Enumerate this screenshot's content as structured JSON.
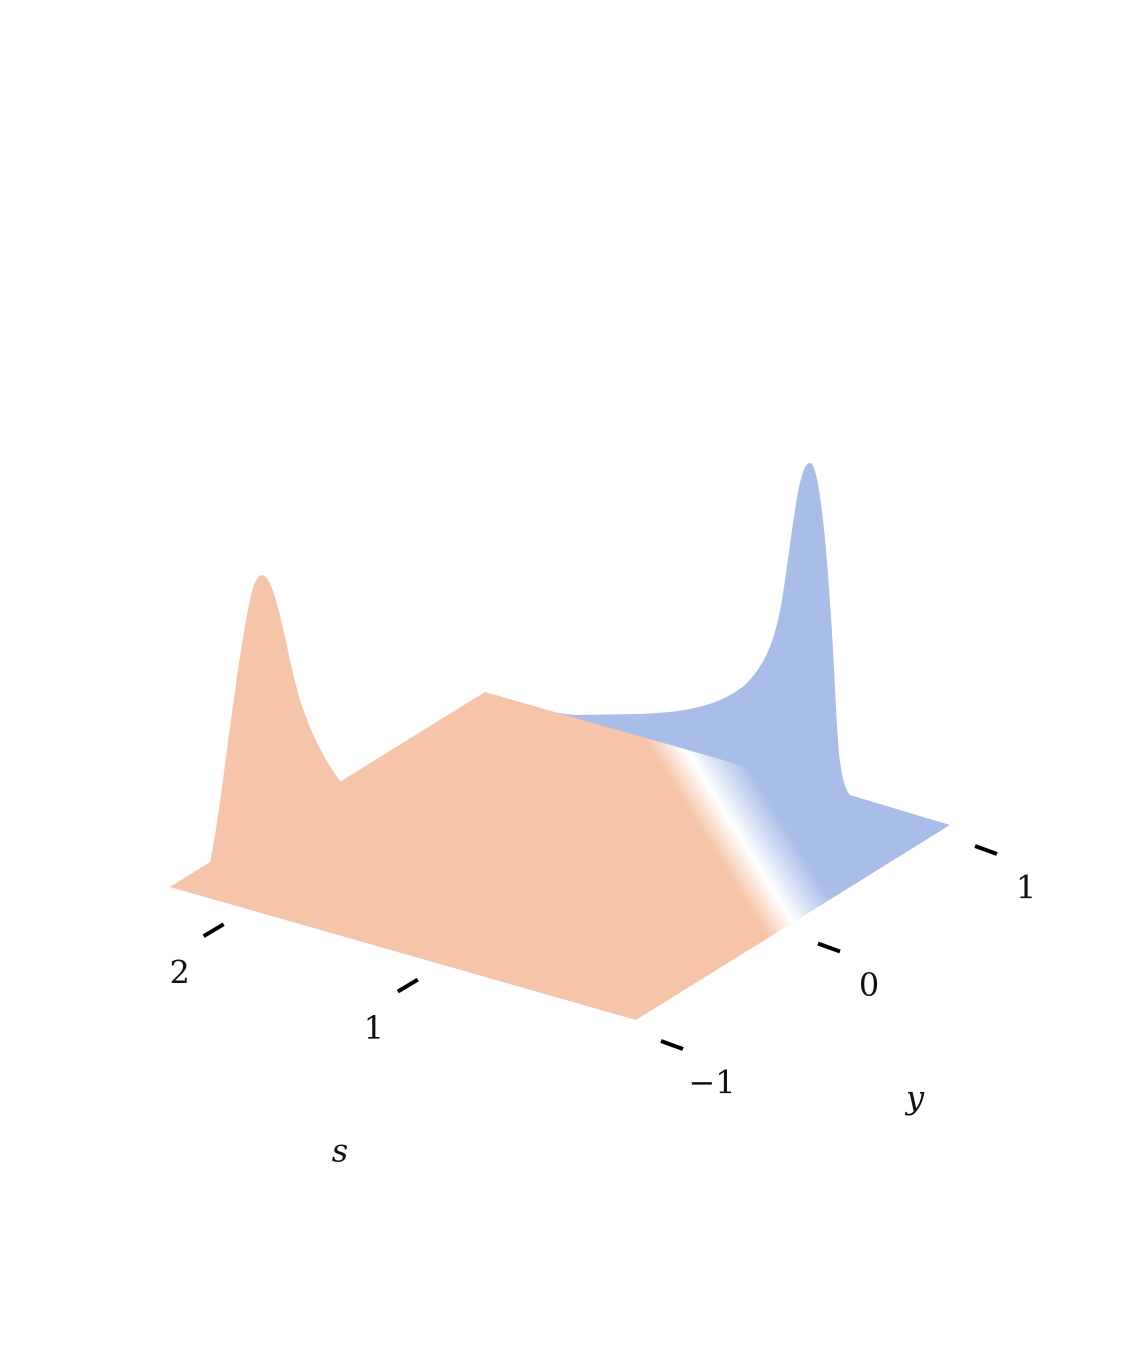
{
  "chart_data": {
    "type": "surface",
    "xlabel": "s",
    "ylabel": "y",
    "xlim": [
      0,
      2.4
    ],
    "xticks": [
      1,
      2
    ],
    "ylim": [
      -1,
      1
    ],
    "yticks": [
      {
        "value": -1,
        "label": "−1"
      },
      0,
      1
    ],
    "colors": {
      "low": "#f6c4a8",
      "mid": "#ffffff",
      "high": "#a8bee8"
    }
  }
}
